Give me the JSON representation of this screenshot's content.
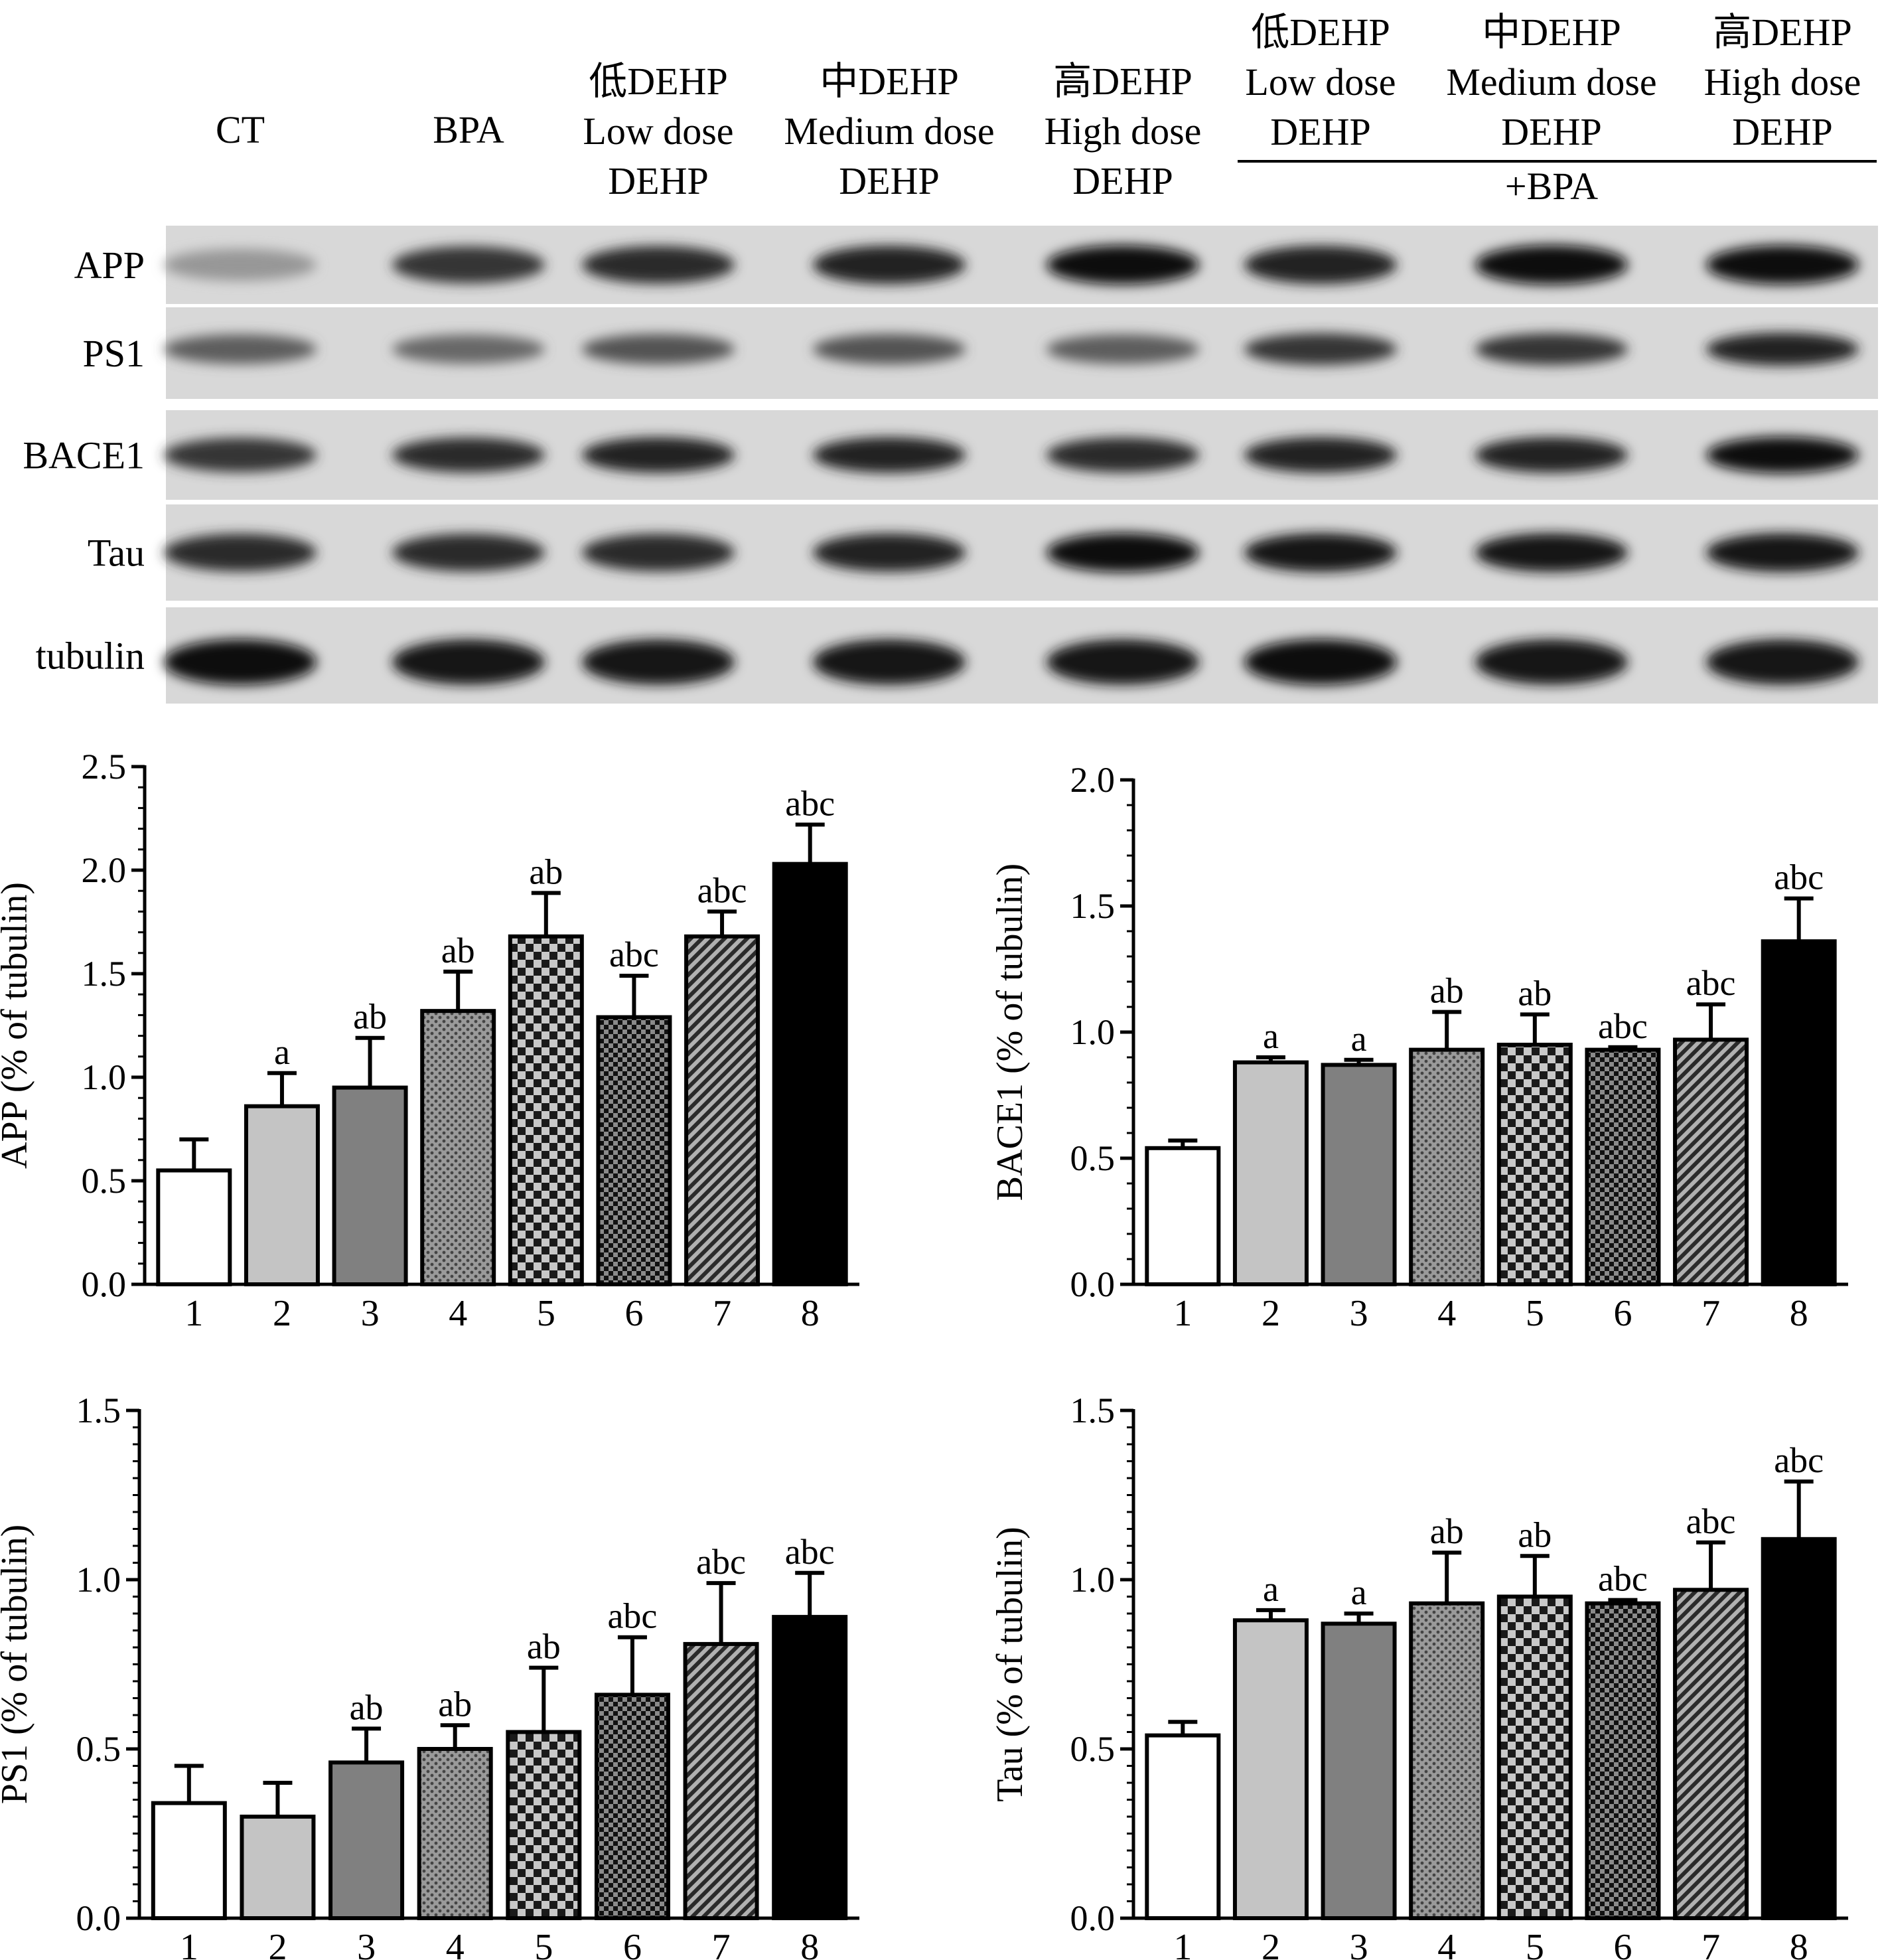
{
  "blot": {
    "lanes": [
      {
        "lines": [
          "CT"
        ]
      },
      {
        "lines": [
          "BPA"
        ]
      },
      {
        "lines": [
          "低DEHP",
          "Low dose",
          "DEHP"
        ]
      },
      {
        "lines": [
          "中DEHP",
          "Medium dose",
          "DEHP"
        ]
      },
      {
        "lines": [
          "高DEHP",
          "High dose",
          "DEHP"
        ]
      },
      {
        "lines": [
          "低DEHP",
          "Low dose",
          "DEHP"
        ]
      },
      {
        "lines": [
          "中DEHP",
          "Medium dose",
          "DEHP"
        ]
      },
      {
        "lines": [
          "高DEHP",
          "High dose",
          "DEHP"
        ]
      }
    ],
    "combo_label": "+BPA",
    "rows": [
      {
        "label": "APP",
        "intensity": [
          0.25,
          0.75,
          0.8,
          0.85,
          0.95,
          0.85,
          0.98,
          0.95
        ]
      },
      {
        "label": "PS1",
        "intensity": [
          0.55,
          0.5,
          0.6,
          0.6,
          0.55,
          0.75,
          0.75,
          0.85
        ]
      },
      {
        "label": "BACE1",
        "intensity": [
          0.75,
          0.8,
          0.85,
          0.85,
          0.8,
          0.85,
          0.85,
          0.95
        ]
      },
      {
        "label": "Tau",
        "intensity": [
          0.8,
          0.8,
          0.8,
          0.85,
          0.95,
          0.9,
          0.9,
          0.9
        ]
      },
      {
        "label": "tubulin",
        "intensity": [
          0.95,
          0.9,
          0.9,
          0.9,
          0.9,
          0.95,
          0.9,
          0.9
        ]
      }
    ]
  },
  "chart_data": [
    {
      "id": "app",
      "type": "bar",
      "ylabel": "APP (% of tubulin)",
      "ylim": [
        0,
        2.5
      ],
      "yticks": [
        "0.0",
        "0.5",
        "1.0",
        "1.5",
        "2.0",
        "2.5"
      ],
      "minor_step": 0.1,
      "categories": [
        "1",
        "2",
        "3",
        "4",
        "5",
        "6",
        "7",
        "8"
      ],
      "values": [
        0.55,
        0.86,
        0.95,
        1.32,
        1.68,
        1.29,
        1.68,
        2.03
      ],
      "errors": [
        0.15,
        0.16,
        0.24,
        0.19,
        0.21,
        0.2,
        0.12,
        0.19
      ],
      "labels": [
        "",
        "a",
        "ab",
        "ab",
        "ab",
        "abc",
        "abc",
        "abc"
      ]
    },
    {
      "id": "bace1",
      "type": "bar",
      "ylabel": "BACE1 (% of tubulin)",
      "ylim": [
        0,
        2.0
      ],
      "yticks": [
        "0.0",
        "0.5",
        "1.0",
        "1.5",
        "2.0"
      ],
      "minor_step": 0.1,
      "categories": [
        "1",
        "2",
        "3",
        "4",
        "5",
        "6",
        "7",
        "8"
      ],
      "values": [
        0.54,
        0.88,
        0.87,
        0.93,
        0.95,
        0.93,
        0.97,
        1.36
      ],
      "errors": [
        0.03,
        0.02,
        0.02,
        0.15,
        0.12,
        0.01,
        0.14,
        0.17
      ],
      "labels": [
        "",
        "a",
        "a",
        "ab",
        "ab",
        "abc",
        "abc",
        "abc"
      ]
    },
    {
      "id": "ps1",
      "type": "bar",
      "ylabel": "PS1 (% of tubulin)",
      "ylim": [
        0,
        1.5
      ],
      "yticks": [
        "0.0",
        "0.5",
        "1.0",
        "1.5"
      ],
      "minor_step": 0.05,
      "categories": [
        "1",
        "2",
        "3",
        "4",
        "5",
        "6",
        "7",
        "8"
      ],
      "values": [
        0.34,
        0.3,
        0.46,
        0.5,
        0.55,
        0.66,
        0.81,
        0.89
      ],
      "errors": [
        0.11,
        0.1,
        0.1,
        0.07,
        0.19,
        0.17,
        0.18,
        0.13
      ],
      "labels": [
        "",
        "",
        "ab",
        "ab",
        "ab",
        "abc",
        "abc",
        "abc"
      ]
    },
    {
      "id": "tau",
      "type": "bar",
      "ylabel": "Tau (% of tubulin)",
      "ylim": [
        0,
        1.5
      ],
      "yticks": [
        "0.0",
        "0.5",
        "1.0",
        "1.5"
      ],
      "minor_step": 0.05,
      "categories": [
        "1",
        "2",
        "3",
        "4",
        "5",
        "6",
        "7",
        "8"
      ],
      "values": [
        0.54,
        0.88,
        0.87,
        0.93,
        0.95,
        0.93,
        0.97,
        1.12
      ],
      "errors": [
        0.04,
        0.03,
        0.03,
        0.15,
        0.12,
        0.01,
        0.14,
        0.17
      ],
      "labels": [
        "",
        "a",
        "a",
        "ab",
        "ab",
        "abc",
        "abc",
        "abc"
      ]
    }
  ]
}
